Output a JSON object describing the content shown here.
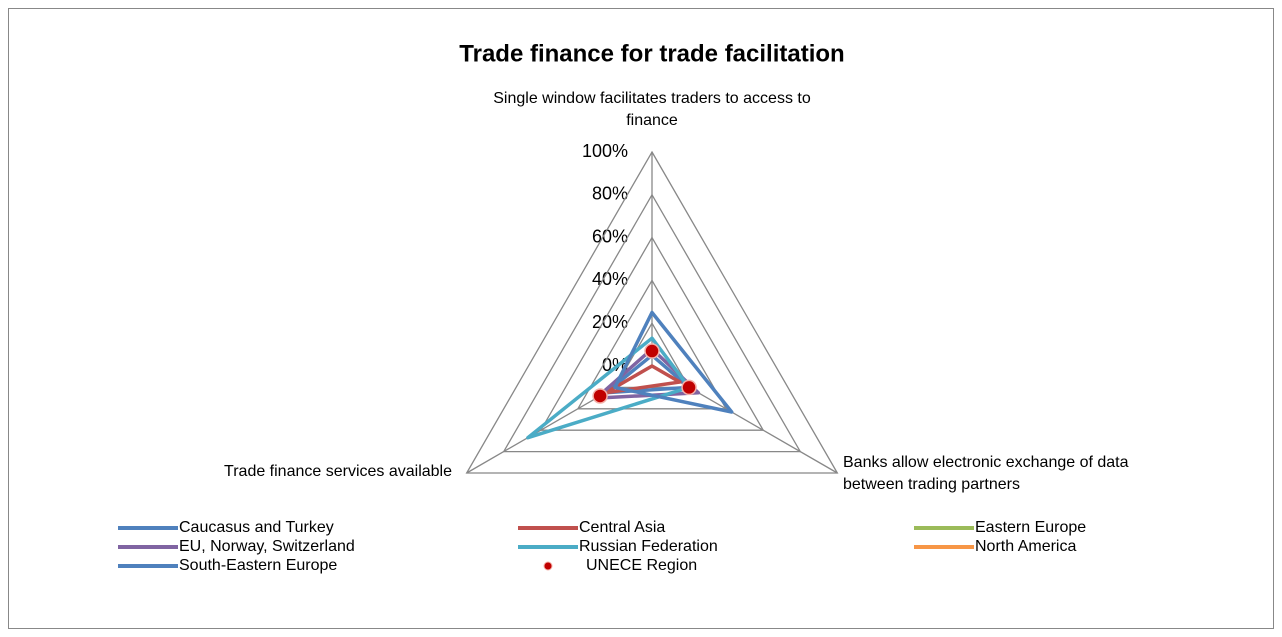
{
  "chart_data": {
    "type": "radar",
    "title": "Trade finance for trade facilitation",
    "categories": [
      "Single window facilitates traders to access to finance",
      "Banks allow electronic exchange of data between trading partners",
      "Trade finance services available"
    ],
    "rlim": [
      0,
      100
    ],
    "rticks": [
      {
        "value": 0,
        "label": "0%"
      },
      {
        "value": 20,
        "label": "20%"
      },
      {
        "value": 40,
        "label": "40%"
      },
      {
        "value": 60,
        "label": "60%"
      },
      {
        "value": 80,
        "label": "80%"
      },
      {
        "value": 100,
        "label": "100%"
      }
    ],
    "grid": true,
    "legend": "bottom",
    "series": [
      {
        "name": "Caucasus and Turkey",
        "color": "#4f81bd",
        "values": [
          5,
          20,
          25
        ]
      },
      {
        "name": "Central Asia",
        "color": "#c0504d",
        "values": [
          0,
          15,
          25
        ]
      },
      {
        "name": "Eastern Europe",
        "color": "#9bbb59",
        "values": [
          0,
          0,
          0
        ]
      },
      {
        "name": "EU, Norway, Switzerland",
        "color": "#8064a2",
        "values": [
          8,
          25,
          30
        ]
      },
      {
        "name": "Russian Federation",
        "color": "#4bacc6",
        "values": [
          13,
          20,
          67
        ]
      },
      {
        "name": "North America",
        "color": "#f79646",
        "values": [
          0,
          0,
          0
        ]
      },
      {
        "name": "South-Eastern Europe",
        "color": "#4f81bd",
        "values": [
          25,
          43,
          20
        ]
      },
      {
        "name": "UNECE Region",
        "color": "#c00000",
        "style": "markers",
        "values": [
          7,
          20,
          28
        ]
      }
    ]
  }
}
